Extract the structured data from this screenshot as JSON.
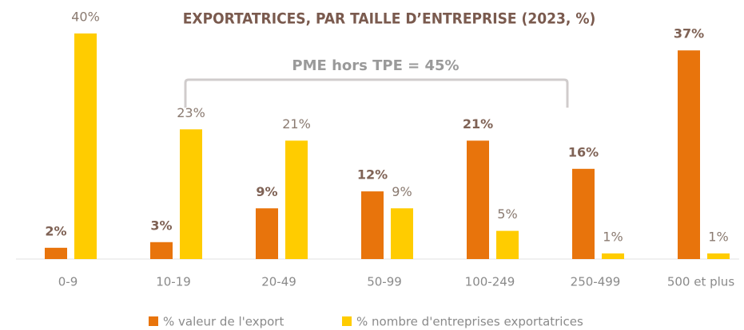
{
  "chart_data": {
    "type": "bar",
    "title": "EXPORTATRICES, PAR TAILLE D’ENTREPRISE (2023, %)",
    "annotation": "PME hors TPE = 45%",
    "categories": [
      "0-9",
      "10-19",
      "20-49",
      "50-99",
      "100-249",
      "250-499",
      "500 et plus"
    ],
    "series": [
      {
        "name": "% valeur de l'export",
        "color": "#e8740c",
        "values": [
          2,
          3,
          9,
          12,
          21,
          16,
          37
        ],
        "value_labels": [
          "2%",
          "3%",
          "9%",
          "12%",
          "21%",
          "16%",
          "37%"
        ]
      },
      {
        "name": "% nombre d'entreprises exportatrices",
        "color": "#ffcc00",
        "values": [
          40,
          23,
          21,
          9,
          5,
          1,
          1
        ],
        "value_labels": [
          "40%",
          "23%",
          "21%",
          "9%",
          "5%",
          "1%",
          "1%"
        ]
      }
    ]
  }
}
